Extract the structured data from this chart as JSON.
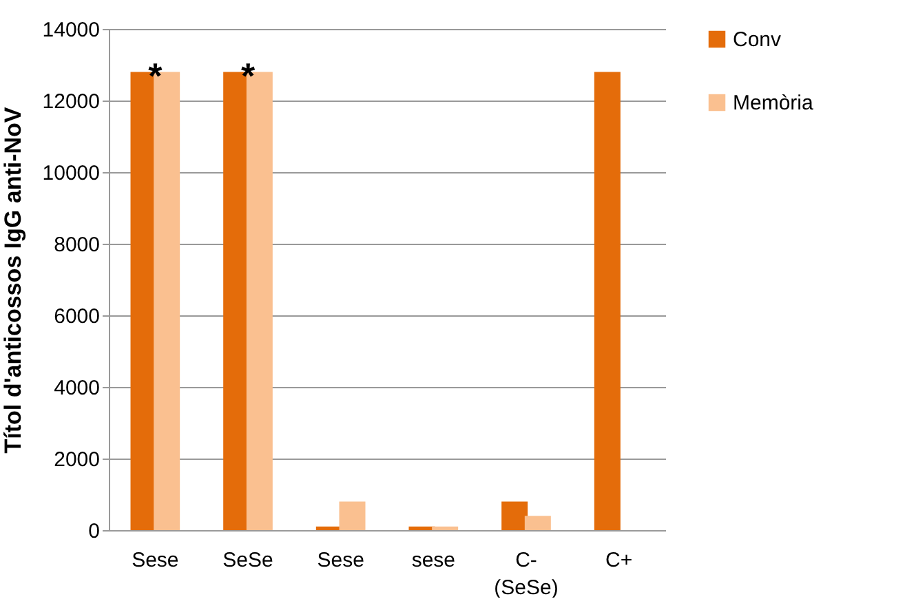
{
  "chart_data": {
    "type": "bar",
    "ylabel": "Títol d'anticossos IgG anti-NoV",
    "categories": [
      "Sese",
      "SeSe",
      "Sese",
      "sese",
      "C-\n(SeSe)",
      "C+"
    ],
    "series": [
      {
        "name": "Conv",
        "color": "#e46c0a",
        "values": [
          12800,
          12800,
          100,
          100,
          800,
          12800
        ]
      },
      {
        "name": "Memòria",
        "color": "#fac090",
        "values": [
          12800,
          12800,
          800,
          100,
          400,
          null
        ]
      }
    ],
    "ylim": [
      0,
      14000
    ],
    "yticks": [
      0,
      2000,
      4000,
      6000,
      8000,
      10000,
      12000,
      14000
    ],
    "grid": "y",
    "legend": "right",
    "annotations": [
      {
        "text": "*",
        "x": "Sese",
        "y": 12800
      },
      {
        "text": "*",
        "x": "SeSe",
        "y": 12800
      }
    ]
  }
}
